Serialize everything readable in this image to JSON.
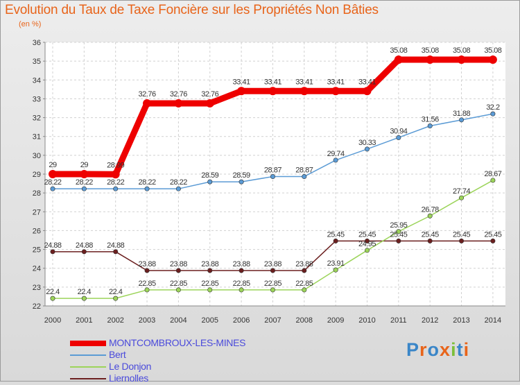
{
  "title": "Evolution du Taux de Taxe Foncière sur les Propriétés Non Bâties",
  "unit": "(en %)",
  "logo": {
    "text": "Proxiti",
    "colors": [
      "#3a86c8",
      "#e8641a",
      "#3a86c8",
      "#e8641a",
      "#7cbf3a",
      "#3a86c8",
      "#e8641a"
    ]
  },
  "chart_data": {
    "type": "line",
    "title": "Evolution du Taux de Taxe Foncière sur les Propriétés Non Bâties",
    "ylabel": "(en %)",
    "xlabel": "",
    "ylim": [
      22,
      36
    ],
    "yticks": [
      "22",
      "23",
      "24",
      "25",
      "26",
      "27",
      "28",
      "29",
      "30",
      "31",
      "32",
      "33",
      "34",
      "35",
      "36"
    ],
    "grid": true,
    "legend_position": "bottom",
    "categories": [
      "2000",
      "2001",
      "2002",
      "2003",
      "2004",
      "2005",
      "2006",
      "2007",
      "2008",
      "2009",
      "2010",
      "2011",
      "2012",
      "2013",
      "2014"
    ],
    "series": [
      {
        "name": "MONTCOMBROUX-LES-MINES",
        "color": "#ee0000",
        "values": [
          29,
          29,
          28.99,
          32.76,
          32.76,
          32.76,
          33.41,
          33.41,
          33.41,
          33.41,
          33.41,
          35.08,
          35.08,
          35.08,
          35.08
        ],
        "labels": [
          "29",
          "29",
          "28.99",
          "32.76",
          "32.76",
          "32.76",
          "33.41",
          "33.41",
          "33.41",
          "33.41",
          "33.41",
          "35.08",
          "35.08",
          "35.08",
          "35.08"
        ]
      },
      {
        "name": "Bert",
        "color": "#5b9bd5",
        "values": [
          28.22,
          28.22,
          28.22,
          28.22,
          28.22,
          28.59,
          28.59,
          28.87,
          28.87,
          29.74,
          30.33,
          30.94,
          31.56,
          31.88,
          32.2
        ],
        "labels": [
          "28.22",
          "28.22",
          "28.22",
          "28.22",
          "28.22",
          "28.59",
          "28.59",
          "28.87",
          "28.87",
          "29.74",
          "30.33",
          "30.94",
          "31.56",
          "31.88",
          "32.2"
        ]
      },
      {
        "name": "Le Donjon",
        "color": "#9cd45a",
        "values": [
          22.4,
          22.4,
          22.4,
          22.85,
          22.85,
          22.85,
          22.85,
          22.85,
          22.85,
          23.91,
          24.95,
          25.95,
          26.78,
          27.74,
          28.67
        ],
        "labels": [
          "22.4",
          "22.4",
          "22.4",
          "22.85",
          "22.85",
          "22.85",
          "22.85",
          "22.85",
          "22.85",
          "23.91",
          "24.95",
          "25.95",
          "26.78",
          "27.74",
          "28.67"
        ]
      },
      {
        "name": "Liernolles",
        "color": "#6b1f1f",
        "values": [
          24.88,
          24.88,
          24.88,
          23.88,
          23.88,
          23.88,
          23.88,
          23.88,
          23.88,
          25.45,
          25.45,
          25.45,
          25.45,
          25.45,
          25.45
        ],
        "labels": [
          "24.88",
          "24.88",
          "24.88",
          "23.88",
          "23.88",
          "23.88",
          "23.88",
          "23.88",
          "23.88",
          "25.45",
          "25.45",
          "25.45",
          "25.45",
          "25.45",
          "25.45"
        ]
      }
    ]
  }
}
